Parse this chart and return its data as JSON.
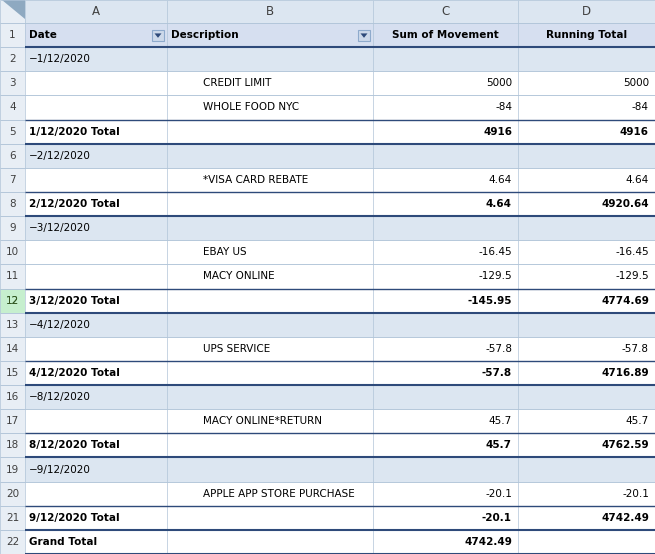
{
  "rows": [
    {
      "row": 1,
      "type": "header",
      "A": "Date",
      "B": "Description",
      "C": "Sum of Movement",
      "D": "Running Total",
      "bold": true
    },
    {
      "row": 2,
      "type": "group",
      "A": "−1/12/2020",
      "B": "",
      "C": "",
      "D": "",
      "bold": false
    },
    {
      "row": 3,
      "type": "data",
      "A": "",
      "B": "CREDIT LIMIT",
      "C": "5000",
      "D": "5000",
      "bold": false
    },
    {
      "row": 4,
      "type": "data",
      "A": "",
      "B": "WHOLE FOOD NYC",
      "C": "-84",
      "D": "-84",
      "bold": false
    },
    {
      "row": 5,
      "type": "subtotal",
      "A": "1/12/2020 Total",
      "B": "",
      "C": "4916",
      "D": "4916",
      "bold": true
    },
    {
      "row": 6,
      "type": "group",
      "A": "−2/12/2020",
      "B": "",
      "C": "",
      "D": "",
      "bold": false
    },
    {
      "row": 7,
      "type": "data",
      "A": "",
      "B": "*VISA CARD REBATE",
      "C": "4.64",
      "D": "4.64",
      "bold": false
    },
    {
      "row": 8,
      "type": "subtotal",
      "A": "2/12/2020 Total",
      "B": "",
      "C": "4.64",
      "D": "4920.64",
      "bold": true
    },
    {
      "row": 9,
      "type": "group",
      "A": "−3/12/2020",
      "B": "",
      "C": "",
      "D": "",
      "bold": false
    },
    {
      "row": 10,
      "type": "data",
      "A": "",
      "B": "EBAY US",
      "C": "-16.45",
      "D": "-16.45",
      "bold": false
    },
    {
      "row": 11,
      "type": "data",
      "A": "",
      "B": "MACY ONLINE",
      "C": "-129.5",
      "D": "-129.5",
      "bold": false
    },
    {
      "row": 12,
      "type": "subtotal",
      "A": "3/12/2020 Total",
      "B": "",
      "C": "-145.95",
      "D": "4774.69",
      "bold": true
    },
    {
      "row": 13,
      "type": "group",
      "A": "−4/12/2020",
      "B": "",
      "C": "",
      "D": "",
      "bold": false
    },
    {
      "row": 14,
      "type": "data",
      "A": "",
      "B": "UPS SERVICE",
      "C": "-57.8",
      "D": "-57.8",
      "bold": false
    },
    {
      "row": 15,
      "type": "subtotal",
      "A": "4/12/2020 Total",
      "B": "",
      "C": "-57.8",
      "D": "4716.89",
      "bold": true
    },
    {
      "row": 16,
      "type": "group",
      "A": "−8/12/2020",
      "B": "",
      "C": "",
      "D": "",
      "bold": false
    },
    {
      "row": 17,
      "type": "data",
      "A": "",
      "B": "MACY ONLINE*RETURN",
      "C": "45.7",
      "D": "45.7",
      "bold": false
    },
    {
      "row": 18,
      "type": "subtotal",
      "A": "8/12/2020 Total",
      "B": "",
      "C": "45.7",
      "D": "4762.59",
      "bold": true
    },
    {
      "row": 19,
      "type": "group",
      "A": "−9/12/2020",
      "B": "",
      "C": "",
      "D": "",
      "bold": false
    },
    {
      "row": 20,
      "type": "data",
      "A": "",
      "B": "APPLE APP STORE PURCHASE",
      "C": "-20.1",
      "D": "-20.1",
      "bold": false
    },
    {
      "row": 21,
      "type": "subtotal",
      "A": "9/12/2020 Total",
      "B": "",
      "C": "-20.1",
      "D": "4742.49",
      "bold": true
    },
    {
      "row": 22,
      "type": "grandtotal",
      "A": "Grand Total",
      "B": "",
      "C": "4742.49",
      "D": "",
      "bold": true
    }
  ],
  "header_bg": "#d6dff0",
  "group_bg": "#dce6f1",
  "data_bg": "#ffffff",
  "rn_bg": "#e8eef5",
  "col_hdr_bg": "#dce6f1",
  "grid_color": "#b0c4d8",
  "thick_color": "#2e4a7a",
  "green_color": "#375623",
  "filter_bg": "#cdd9ea",
  "filter_bd": "#8eaacc"
}
